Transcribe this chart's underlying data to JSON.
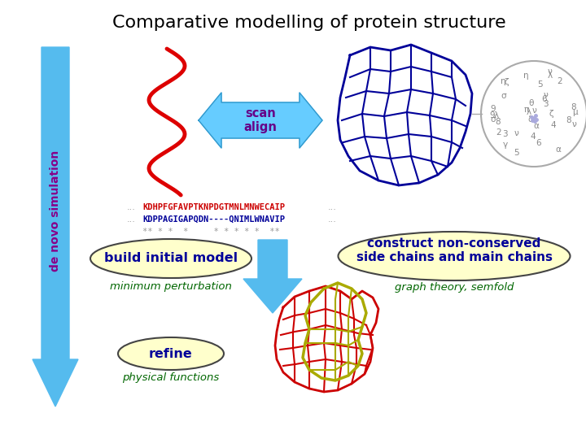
{
  "title": "Comparative modelling of protein structure",
  "title_fontsize": 16,
  "title_color": "#000000",
  "background_color": "#ffffff",
  "left_arrow_color": "#55bbee",
  "left_arrow_label": "de novo simulation",
  "left_arrow_label_color": "#880088",
  "scan_align_box_color": "#66ccff",
  "scan_align_text": "scan\nalign",
  "scan_align_text_color": "#660088",
  "seq1": "KDHPFGFAVPTKNPDGTMNLMNWECAIP",
  "seq2": "KDPPAGIGAPQDN----QNIMLWNAVIP",
  "seq3": "** * *  *     * * * * *  **",
  "seq1_color": "#cc0000",
  "seq2_color": "#000099",
  "seq3_color": "#999999",
  "dots_color": "#999999",
  "build_model_text": "build initial model",
  "build_model_color": "#000099",
  "build_model_ellipse_color": "#ffffcc",
  "min_perturbation_text": "minimum perturbation",
  "min_perturbation_color": "#006600",
  "construct_text": "construct non-conserved\nside chains and main chains",
  "construct_color": "#000099",
  "construct_ellipse_color": "#ffffcc",
  "graph_theory_text": "graph theory, semfold",
  "graph_theory_color": "#006600",
  "refine_text": "refine",
  "refine_color": "#000099",
  "refine_ellipse_color": "#ffffcc",
  "physical_text": "physical functions",
  "physical_color": "#006600",
  "down_arrow_color": "#55bbee"
}
